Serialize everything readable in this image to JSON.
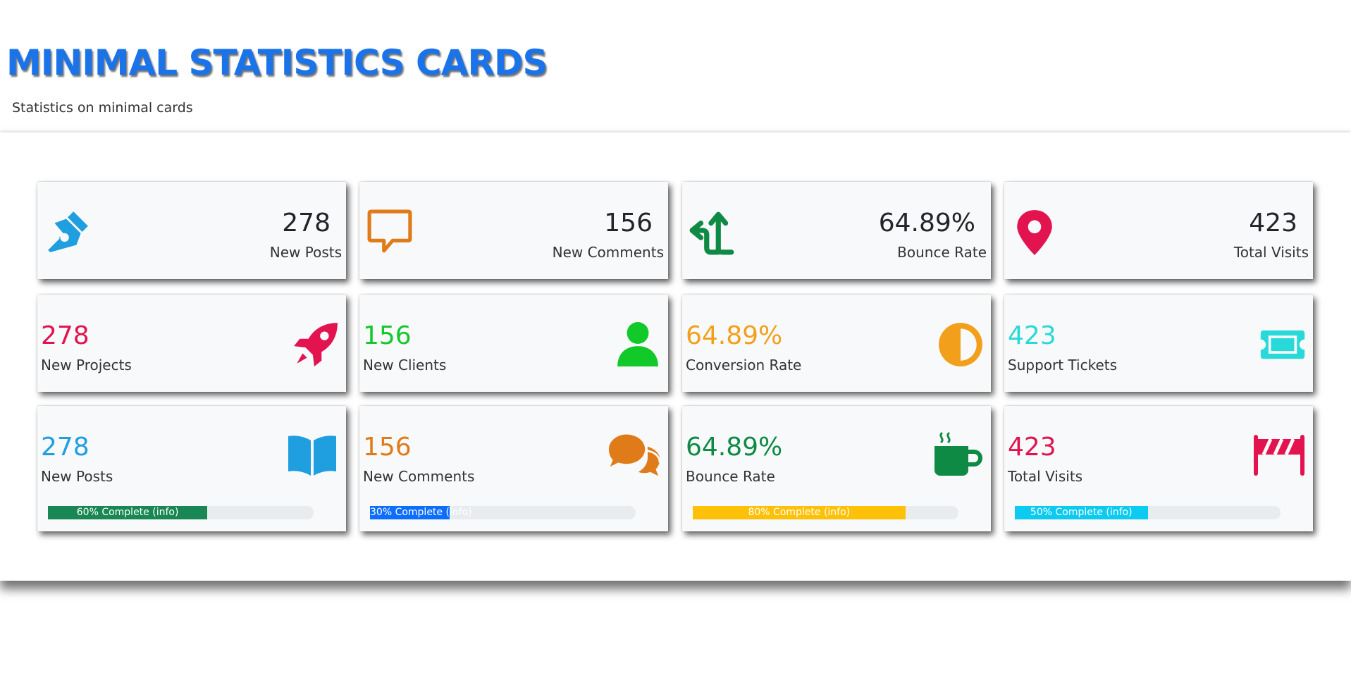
{
  "header": {
    "title": "MINIMAL STATISTICS CARDS",
    "subtitle": "Statistics on minimal cards"
  },
  "colors": {
    "title_blue": "#1a73e8",
    "blue": "#1f9ee0",
    "orange": "#e07b1a",
    "green": "#0e8a45",
    "pink": "#e3134f",
    "light_green": "#12c92a",
    "amber": "#f2a01b",
    "cyan": "#28d9d9",
    "progress_green": "#198754",
    "progress_blue": "#0d6efd",
    "progress_yellow": "#ffc107",
    "progress_cyan": "#0dcaf0"
  },
  "row1": [
    {
      "value": "278",
      "label": "New Posts",
      "icon": "pen-nib-icon"
    },
    {
      "value": "156",
      "label": "New Comments",
      "icon": "comment-icon"
    },
    {
      "value": "64.89%",
      "label": "Bounce Rate",
      "icon": "split-arrow-icon"
    },
    {
      "value": "423",
      "label": "Total Visits",
      "icon": "map-pin-icon"
    }
  ],
  "row2": [
    {
      "value": "278",
      "label": "New Projects",
      "icon": "rocket-icon"
    },
    {
      "value": "156",
      "label": "New Clients",
      "icon": "user-icon"
    },
    {
      "value": "64.89%",
      "label": "Conversion Rate",
      "icon": "half-circle-icon"
    },
    {
      "value": "423",
      "label": "Support Tickets",
      "icon": "ticket-icon"
    }
  ],
  "row3": [
    {
      "value": "278",
      "label": "New Posts",
      "icon": "book-icon",
      "progress_label": "60% Complete (info)",
      "progress": 0.6
    },
    {
      "value": "156",
      "label": "New Comments",
      "icon": "comments-icon",
      "progress_label": "30% Complete (info)",
      "progress": 0.3
    },
    {
      "value": "64.89%",
      "label": "Bounce Rate",
      "icon": "coffee-mug-icon",
      "progress_label": "80% Complete (info)",
      "progress": 0.8
    },
    {
      "value": "423",
      "label": "Total Visits",
      "icon": "road-barrier-icon",
      "progress_label": "50% Complete (info)",
      "progress": 0.5
    }
  ]
}
